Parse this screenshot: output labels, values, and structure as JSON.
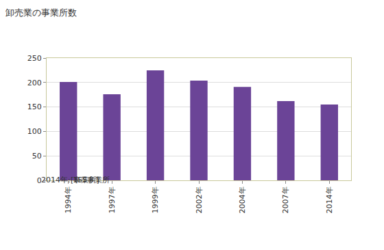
{
  "chart_data": {
    "type": "bar",
    "title": "卸売業の事業所数",
    "y_label": "[事業所]",
    "annotations": [
      "2014年: 155事業所"
    ],
    "categories": [
      "1994年",
      "1997年",
      "1999年",
      "2002年",
      "2004年",
      "2007年",
      "2014年"
    ],
    "values": [
      201,
      176,
      225,
      204,
      191,
      162,
      155
    ],
    "color": "#6b4497",
    "ylim": [
      0,
      250
    ],
    "yticks": [
      0,
      50,
      100,
      150,
      200,
      250
    ],
    "grid": true
  }
}
